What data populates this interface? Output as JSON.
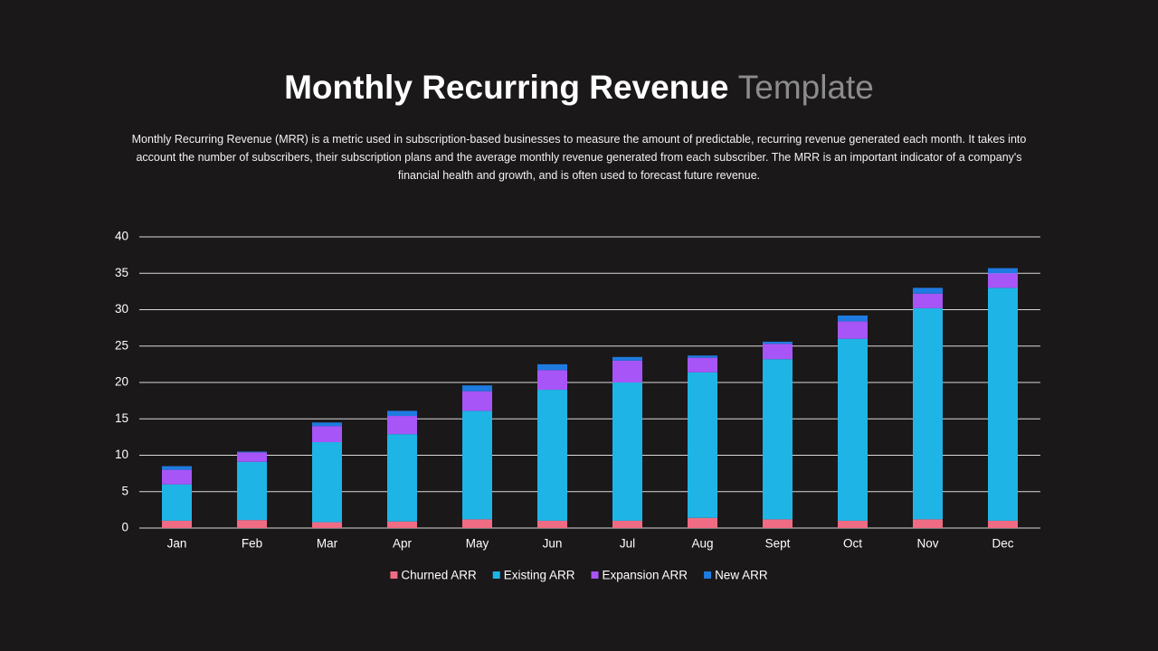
{
  "chart_data": {
    "type": "stacked_bar",
    "title": "Monthly Recurring Revenue",
    "title_highlight": "Template",
    "description": "Monthly Recurring Revenue (MRR) is a metric used in subscription-based businesses to measure the amount of predictable, recurring revenue generated each month. It takes into account the number of subscribers, their subscription plans and the average monthly revenue generated from each subscriber. The MRR is an important indicator of a company's financial health and growth, and is often used to forecast future revenue.",
    "categories": [
      "Jan",
      "Feb",
      "Mar",
      "Apr",
      "May",
      "Jun",
      "Jul",
      "Aug",
      "Sept",
      "Oct",
      "Nov",
      "Dec"
    ],
    "series": [
      {
        "name": "Churned ARR",
        "color": "#f06b84",
        "values": [
          1.0,
          1.1,
          0.8,
          0.9,
          1.2,
          1.0,
          1.0,
          1.4,
          1.2,
          1.0,
          1.2,
          1.0
        ]
      },
      {
        "name": "Existing ARR",
        "color": "#1eb4e6",
        "values": [
          5.0,
          8.0,
          11.0,
          12.0,
          14.9,
          18.0,
          19.0,
          20.0,
          22.0,
          25.0,
          29.0,
          32.0
        ]
      },
      {
        "name": "Expansion ARR",
        "color": "#a855f7",
        "values": [
          2.0,
          1.3,
          2.2,
          2.5,
          2.7,
          2.7,
          3.0,
          2.0,
          2.1,
          2.4,
          2.0,
          2.0
        ]
      },
      {
        "name": "New ARR",
        "color": "#1e7be0",
        "values": [
          0.5,
          0.1,
          0.5,
          0.7,
          0.8,
          0.8,
          0.5,
          0.3,
          0.3,
          0.8,
          0.8,
          0.7
        ]
      }
    ],
    "ylim": [
      0,
      40
    ],
    "yticks": [
      0,
      5,
      10,
      15,
      20,
      25,
      30,
      35,
      40
    ],
    "grid": true,
    "legend": "bottom"
  }
}
